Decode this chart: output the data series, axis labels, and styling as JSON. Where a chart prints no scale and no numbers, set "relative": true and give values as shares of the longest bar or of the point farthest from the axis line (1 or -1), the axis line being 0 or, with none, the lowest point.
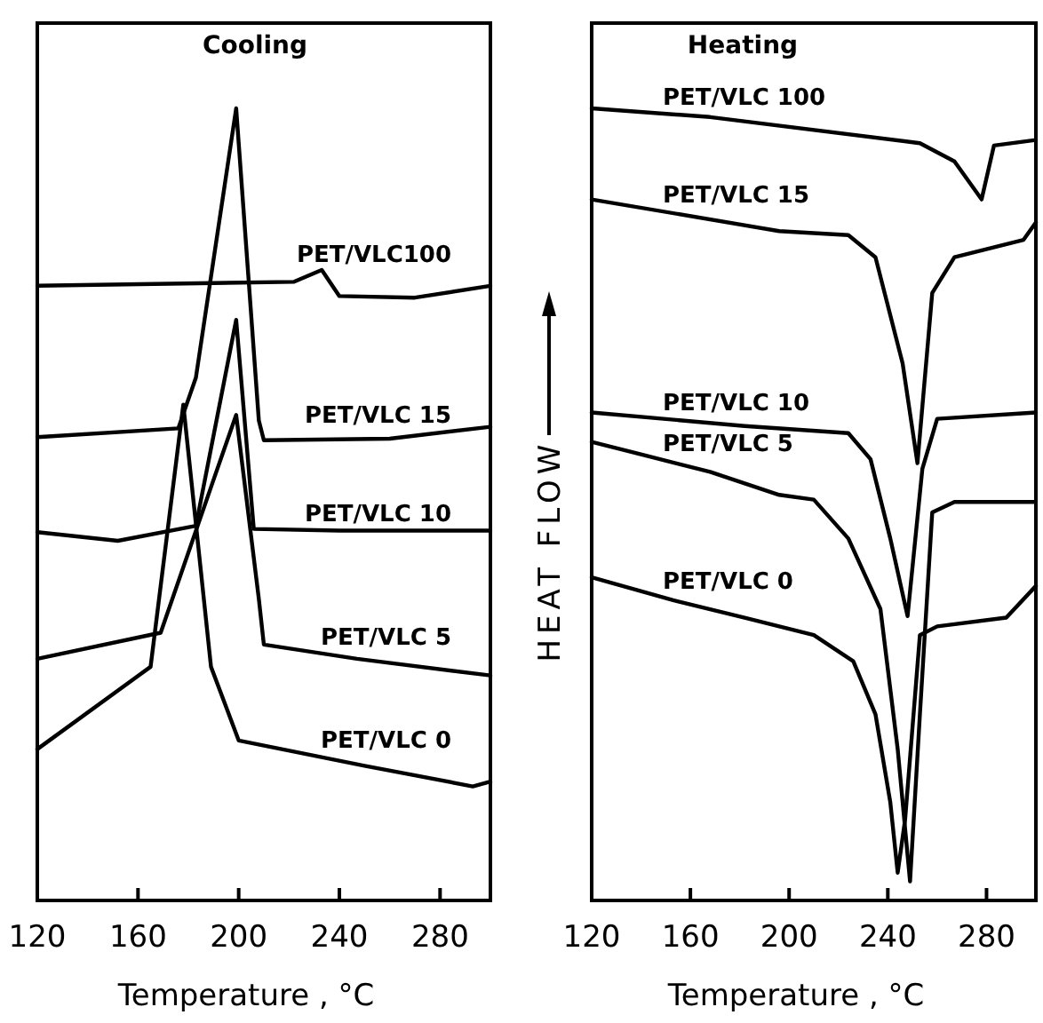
{
  "chart_data": [
    {
      "type": "line",
      "title": "Cooling",
      "xlabel": "Temperature , °C",
      "relative": true,
      "xlim": [
        120,
        300
      ],
      "xticks": [
        120,
        160,
        200,
        240,
        280
      ],
      "series": [
        {
          "name": "PET/VLC100",
          "color": "#000000",
          "x": [
            120,
            222,
            233,
            240,
            270,
            300
          ],
          "values": [
            0.776,
            0.781,
            0.796,
            0.763,
            0.761,
            0.776
          ]
        },
        {
          "name": "PET/VLC 15",
          "color": "#000000",
          "x": [
            120,
            176,
            183,
            199,
            208,
            210,
            260,
            300
          ],
          "values": [
            0.585,
            0.596,
            0.66,
            1.0,
            0.606,
            0.581,
            0.583,
            0.598
          ]
        },
        {
          "name": "PET/VLC 10",
          "color": "#000000",
          "x": [
            120,
            152,
            183,
            199,
            206,
            240,
            300
          ],
          "values": [
            0.465,
            0.454,
            0.473,
            0.733,
            0.469,
            0.467,
            0.467
          ]
        },
        {
          "name": "PET/VLC 5",
          "color": "#000000",
          "x": [
            120,
            169,
            190,
            199,
            208,
            210,
            247,
            300
          ],
          "values": [
            0.305,
            0.338,
            0.531,
            0.613,
            0.381,
            0.323,
            0.305,
            0.284
          ]
        },
        {
          "name": "PET/VLC 0",
          "color": "#000000",
          "x": [
            120,
            165,
            178,
            189,
            200,
            250,
            293,
            300
          ],
          "values": [
            0.191,
            0.295,
            0.626,
            0.295,
            0.202,
            0.17,
            0.144,
            0.15
          ]
        }
      ]
    },
    {
      "type": "line",
      "title": "Heating",
      "xlabel": "Temperature , °C",
      "ylabel": "HEAT FLOW",
      "relative": true,
      "xlim": [
        120,
        300
      ],
      "xticks": [
        120,
        160,
        200,
        240,
        280
      ],
      "series": [
        {
          "name": "PET/VLC 100",
          "color": "#000000",
          "x": [
            120,
            168,
            253,
            267,
            278,
            283,
            300
          ],
          "values": [
            1.0,
            0.989,
            0.956,
            0.933,
            0.885,
            0.953,
            0.96
          ]
        },
        {
          "name": "PET/VLC 15",
          "color": "#000000",
          "x": [
            120,
            196,
            224,
            235,
            246,
            252,
            258,
            267,
            295,
            300
          ],
          "values": [
            0.885,
            0.845,
            0.84,
            0.812,
            0.678,
            0.552,
            0.767,
            0.812,
            0.834,
            0.856
          ]
        },
        {
          "name": "PET/VLC 10",
          "color": "#000000",
          "x": [
            120,
            182,
            224,
            233,
            241,
            248,
            254,
            260,
            300
          ],
          "values": [
            0.616,
            0.599,
            0.59,
            0.557,
            0.457,
            0.359,
            0.545,
            0.608,
            0.616
          ]
        },
        {
          "name": "PET/VLC 5",
          "color": "#000000",
          "x": [
            120,
            168,
            196,
            210,
            224,
            237,
            244,
            249,
            253,
            258,
            267,
            300
          ],
          "values": [
            0.579,
            0.541,
            0.512,
            0.506,
            0.457,
            0.368,
            0.191,
            0.024,
            0.235,
            0.49,
            0.503,
            0.503
          ]
        },
        {
          "name": "PET/VLC 0",
          "color": "#000000",
          "x": [
            120,
            153,
            182,
            210,
            226,
            235,
            241,
            244,
            247,
            253,
            260,
            288,
            300
          ],
          "values": [
            0.408,
            0.379,
            0.357,
            0.335,
            0.302,
            0.235,
            0.124,
            0.035,
            0.102,
            0.335,
            0.346,
            0.357,
            0.397
          ]
        }
      ]
    }
  ]
}
